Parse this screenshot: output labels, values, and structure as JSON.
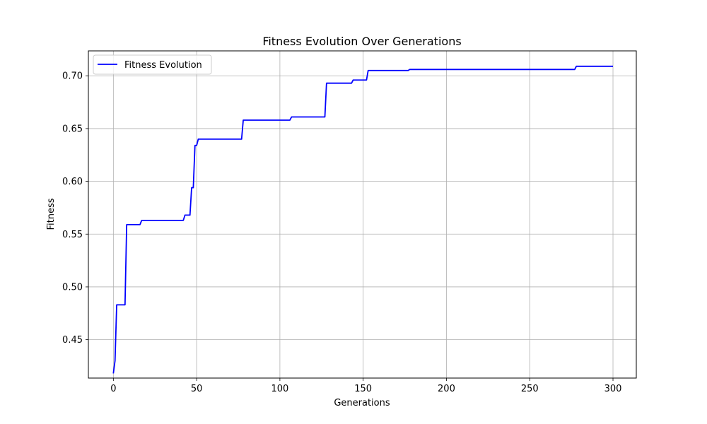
{
  "chart_data": {
    "type": "line",
    "title": "Fitness Evolution Over Generations",
    "xlabel": "Generations",
    "ylabel": "Fitness",
    "xlim": [
      -15,
      314
    ],
    "ylim": [
      0.4136,
      0.7236
    ],
    "xticks": [
      0,
      50,
      100,
      150,
      200,
      250,
      300
    ],
    "yticks": [
      0.45,
      0.5,
      0.55,
      0.6,
      0.65,
      0.7
    ],
    "ytick_labels": [
      "0.45",
      "0.50",
      "0.55",
      "0.60",
      "0.65",
      "0.70"
    ],
    "grid": true,
    "legend_position": "top-left",
    "series": [
      {
        "name": "Fitness Evolution",
        "color": "#0000ff",
        "points": [
          [
            0,
            0.418
          ],
          [
            1,
            0.43
          ],
          [
            2,
            0.483
          ],
          [
            7,
            0.483
          ],
          [
            8,
            0.559
          ],
          [
            16,
            0.559
          ],
          [
            17,
            0.563
          ],
          [
            42,
            0.563
          ],
          [
            43,
            0.568
          ],
          [
            46,
            0.568
          ],
          [
            47,
            0.594
          ],
          [
            48,
            0.594
          ],
          [
            49,
            0.634
          ],
          [
            50,
            0.634
          ],
          [
            51,
            0.64
          ],
          [
            77,
            0.64
          ],
          [
            78,
            0.658
          ],
          [
            106,
            0.658
          ],
          [
            107,
            0.661
          ],
          [
            127,
            0.661
          ],
          [
            128,
            0.693
          ],
          [
            143,
            0.693
          ],
          [
            144,
            0.696
          ],
          [
            152,
            0.696
          ],
          [
            153,
            0.705
          ],
          [
            177,
            0.705
          ],
          [
            178,
            0.706
          ],
          [
            277,
            0.706
          ],
          [
            278,
            0.709
          ],
          [
            300,
            0.709
          ]
        ]
      }
    ]
  }
}
